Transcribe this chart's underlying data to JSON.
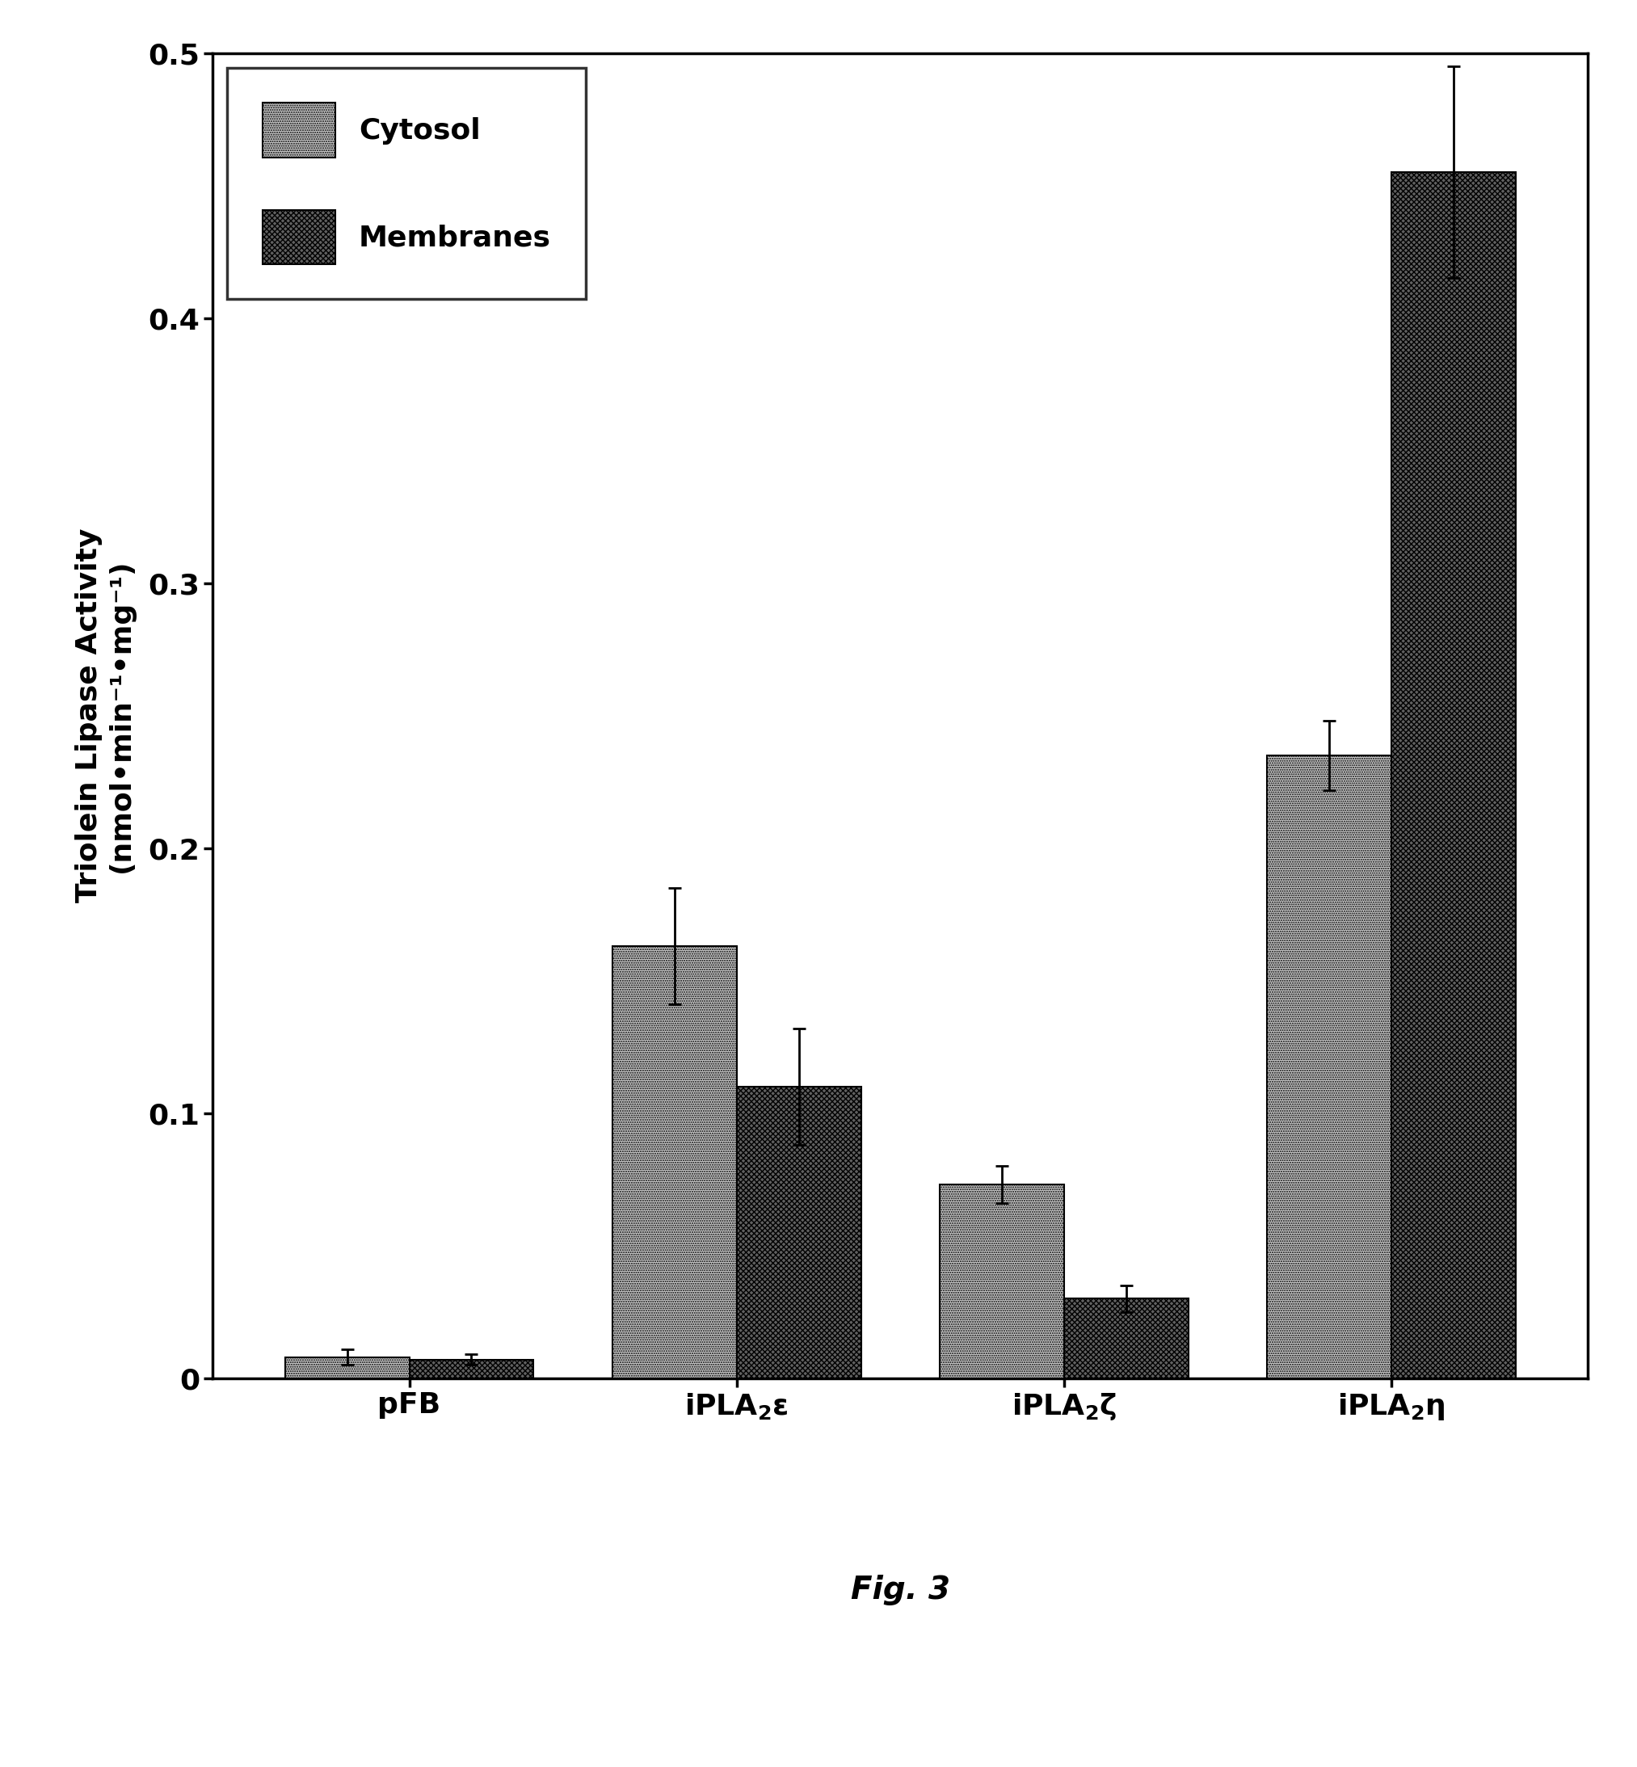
{
  "cytosol_values": [
    0.008,
    0.163,
    0.073,
    0.235
  ],
  "cytosol_errors": [
    0.003,
    0.022,
    0.007,
    0.013
  ],
  "membrane_values": [
    0.007,
    0.11,
    0.03,
    0.455
  ],
  "membrane_errors": [
    0.002,
    0.022,
    0.005,
    0.04
  ],
  "cytosol_color": "#c8c8c8",
  "membrane_color": "#606060",
  "ylabel_line1": "Triolein Lipase Activity",
  "ylabel_line2": "(nmol•min⁻¹•mg⁻¹)",
  "ylim": [
    0,
    0.5
  ],
  "yticks": [
    0,
    0.1,
    0.2,
    0.3,
    0.4,
    0.5
  ],
  "fig_label": "Fig. 3",
  "bar_width": 0.38,
  "label_fontsize": 26,
  "tick_fontsize": 26,
  "legend_fontsize": 26,
  "figlabel_fontsize": 28
}
